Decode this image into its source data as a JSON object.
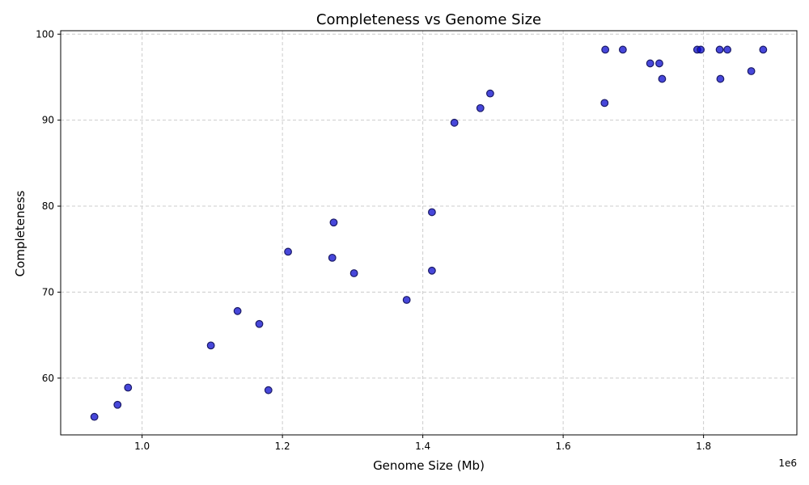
{
  "chart_data": {
    "type": "scatter",
    "title": "Completeness vs Genome Size",
    "xlabel": "Genome Size (Mb)",
    "ylabel": "Completeness",
    "offset_text": "1e6",
    "xlim": [
      884000,
      1933000
    ],
    "ylim": [
      53.4,
      100.4
    ],
    "xticks": [
      1000000,
      1200000,
      1400000,
      1600000,
      1800000
    ],
    "xtick_labels": [
      "1.0",
      "1.2",
      "1.4",
      "1.6",
      "1.8"
    ],
    "yticks": [
      60,
      70,
      80,
      90,
      100
    ],
    "ytick_labels": [
      "60",
      "70",
      "80",
      "90",
      "100"
    ],
    "grid": true,
    "marker_color": "#0000cc",
    "points": [
      {
        "x": 932000,
        "y": 55.5
      },
      {
        "x": 965000,
        "y": 56.9
      },
      {
        "x": 980000,
        "y": 58.9
      },
      {
        "x": 1098000,
        "y": 63.8
      },
      {
        "x": 1136000,
        "y": 67.8
      },
      {
        "x": 1167000,
        "y": 66.3
      },
      {
        "x": 1180000,
        "y": 58.6
      },
      {
        "x": 1208000,
        "y": 74.7
      },
      {
        "x": 1271000,
        "y": 74.0
      },
      {
        "x": 1273000,
        "y": 78.1
      },
      {
        "x": 1302000,
        "y": 72.2
      },
      {
        "x": 1377000,
        "y": 69.1
      },
      {
        "x": 1413000,
        "y": 79.3
      },
      {
        "x": 1413000,
        "y": 72.5
      },
      {
        "x": 1445000,
        "y": 89.7
      },
      {
        "x": 1482000,
        "y": 91.4
      },
      {
        "x": 1496000,
        "y": 93.1
      },
      {
        "x": 1659000,
        "y": 92.0
      },
      {
        "x": 1660000,
        "y": 98.2
      },
      {
        "x": 1685000,
        "y": 98.2
      },
      {
        "x": 1724000,
        "y": 96.6
      },
      {
        "x": 1737000,
        "y": 96.6
      },
      {
        "x": 1741000,
        "y": 94.8
      },
      {
        "x": 1791000,
        "y": 98.2
      },
      {
        "x": 1796000,
        "y": 98.2
      },
      {
        "x": 1823000,
        "y": 98.2
      },
      {
        "x": 1824000,
        "y": 94.8
      },
      {
        "x": 1834000,
        "y": 98.2
      },
      {
        "x": 1868000,
        "y": 95.7
      },
      {
        "x": 1885000,
        "y": 98.2
      }
    ]
  }
}
